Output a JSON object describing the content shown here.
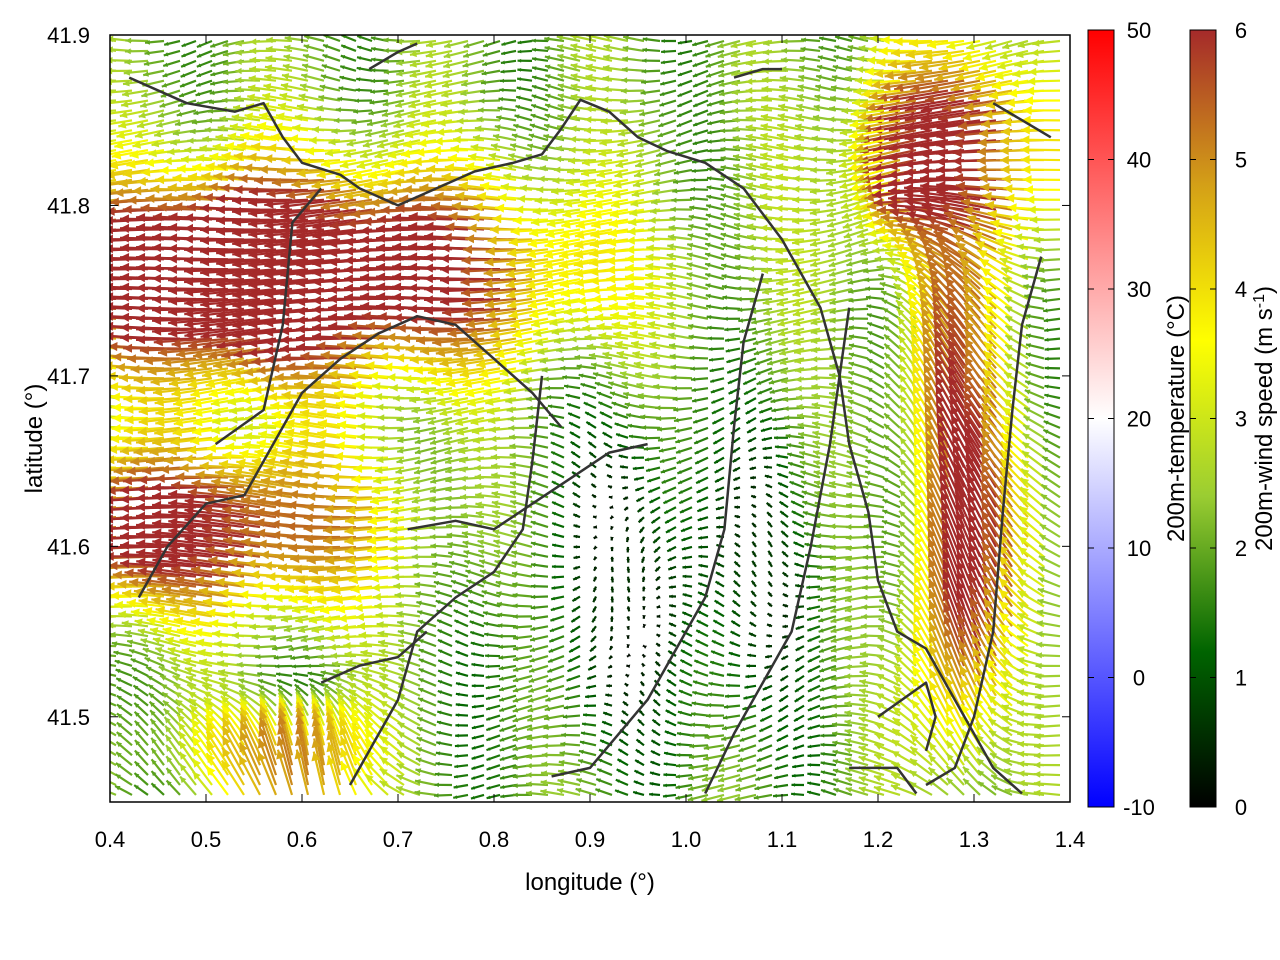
{
  "chart_data": {
    "type": "vector_field",
    "xlabel": "longitude (°)",
    "ylabel": "latitude (°)",
    "xlim": [
      0.4,
      1.4
    ],
    "ylim": [
      41.45,
      41.9
    ],
    "xticks": [
      "0.4",
      "0.5",
      "0.6",
      "0.7",
      "0.8",
      "0.9",
      "1.0",
      "1.1",
      "1.2",
      "1.3",
      "1.4"
    ],
    "xtick_values": [
      0.4,
      0.5,
      0.6,
      0.7,
      0.8,
      0.9,
      1.0,
      1.1,
      1.2,
      1.3,
      1.4
    ],
    "yticks": [
      "41.5",
      "41.6",
      "41.7",
      "41.8",
      "41.9"
    ],
    "ytick_values": [
      41.5,
      41.6,
      41.7,
      41.8,
      41.9
    ],
    "colorbars": [
      {
        "label": "200m-temperature (°C)",
        "range": [
          -10,
          50
        ],
        "ticks": [
          "-10",
          "0",
          "10",
          "20",
          "30",
          "40",
          "50"
        ],
        "tick_values": [
          -10,
          0,
          10,
          20,
          30,
          40,
          50
        ],
        "colors": [
          "#0000ff",
          "#ffffff",
          "#ff0000"
        ]
      },
      {
        "label_main": "200m-wind speed (m s",
        "label_sup": "-1",
        "label_end": ")",
        "range": [
          0,
          6
        ],
        "ticks": [
          "0",
          "1",
          "2",
          "3",
          "4",
          "5",
          "6"
        ],
        "tick_values": [
          0,
          1,
          2,
          3,
          4,
          5,
          6
        ],
        "colors": [
          "#000000",
          "#006400",
          "#9acd32",
          "#ffff00",
          "#d4a017",
          "#a52a2a"
        ]
      }
    ],
    "coastline": [
      [
        0.42,
        41.875
      ],
      [
        0.48,
        41.86
      ],
      [
        0.53,
        41.855
      ],
      [
        0.56,
        41.86
      ],
      [
        0.58,
        41.84
      ],
      [
        0.6,
        41.825
      ],
      [
        0.64,
        41.818
      ],
      [
        0.66,
        41.81
      ],
      [
        0.7,
        41.8
      ],
      [
        0.74,
        41.81
      ],
      [
        0.78,
        41.82
      ],
      [
        0.82,
        41.825
      ],
      [
        0.85,
        41.83
      ],
      [
        0.87,
        41.845
      ],
      [
        0.89,
        41.862
      ],
      [
        0.92,
        41.855
      ],
      [
        0.95,
        41.84
      ],
      [
        0.98,
        41.832
      ],
      [
        1.02,
        41.825
      ],
      [
        1.06,
        41.81
      ],
      [
        1.1,
        41.78
      ],
      [
        1.12,
        41.76
      ],
      [
        1.14,
        41.74
      ],
      [
        1.16,
        41.7
      ],
      [
        1.17,
        41.66
      ],
      [
        1.19,
        41.62
      ],
      [
        1.2,
        41.58
      ],
      [
        1.22,
        41.55
      ],
      [
        1.25,
        41.54
      ],
      [
        1.28,
        41.51
      ],
      [
        1.3,
        41.49
      ],
      [
        1.32,
        41.47
      ],
      [
        1.35,
        41.455
      ]
    ],
    "contours": [
      [
        [
          0.43,
          41.57
        ],
        [
          0.46,
          41.6
        ],
        [
          0.5,
          41.625
        ],
        [
          0.54,
          41.63
        ],
        [
          0.57,
          41.66
        ],
        [
          0.6,
          41.69
        ],
        [
          0.64,
          41.71
        ],
        [
          0.68,
          41.725
        ],
        [
          0.72,
          41.735
        ],
        [
          0.76,
          41.73
        ],
        [
          0.8,
          41.71
        ],
        [
          0.84,
          41.69
        ],
        [
          0.87,
          41.67
        ]
      ],
      [
        [
          0.51,
          41.66
        ],
        [
          0.56,
          41.68
        ],
        [
          0.58,
          41.73
        ],
        [
          0.59,
          41.79
        ],
        [
          0.62,
          41.81
        ]
      ],
      [
        [
          0.65,
          41.46
        ],
        [
          0.68,
          41.49
        ],
        [
          0.7,
          41.51
        ],
        [
          0.72,
          41.55
        ],
        [
          0.76,
          41.57
        ],
        [
          0.8,
          41.585
        ],
        [
          0.83,
          41.61
        ],
        [
          0.84,
          41.65
        ],
        [
          0.85,
          41.7
        ]
      ],
      [
        [
          0.62,
          41.52
        ],
        [
          0.66,
          41.53
        ],
        [
          0.7,
          41.535
        ],
        [
          0.73,
          41.55
        ]
      ],
      [
        [
          0.71,
          41.61
        ],
        [
          0.76,
          41.615
        ],
        [
          0.8,
          41.61
        ],
        [
          0.84,
          41.625
        ],
        [
          0.88,
          41.64
        ],
        [
          0.92,
          41.655
        ],
        [
          0.96,
          41.66
        ]
      ],
      [
        [
          0.86,
          41.465
        ],
        [
          0.9,
          41.47
        ],
        [
          0.93,
          41.49
        ],
        [
          0.96,
          41.51
        ],
        [
          0.99,
          41.54
        ],
        [
          1.02,
          41.57
        ],
        [
          1.04,
          41.61
        ],
        [
          1.05,
          41.67
        ],
        [
          1.06,
          41.72
        ],
        [
          1.08,
          41.76
        ]
      ],
      [
        [
          1.02,
          41.455
        ],
        [
          1.05,
          41.49
        ],
        [
          1.08,
          41.52
        ],
        [
          1.11,
          41.55
        ],
        [
          1.13,
          41.6
        ],
        [
          1.15,
          41.66
        ],
        [
          1.16,
          41.7
        ],
        [
          1.17,
          41.74
        ]
      ],
      [
        [
          1.2,
          41.5
        ],
        [
          1.25,
          41.52
        ],
        [
          1.26,
          41.5
        ],
        [
          1.25,
          41.48
        ]
      ],
      [
        [
          1.25,
          41.46
        ],
        [
          1.28,
          41.47
        ],
        [
          1.3,
          41.5
        ],
        [
          1.32,
          41.55
        ],
        [
          1.33,
          41.62
        ],
        [
          1.34,
          41.68
        ],
        [
          1.35,
          41.73
        ],
        [
          1.37,
          41.77
        ]
      ],
      [
        [
          1.17,
          41.47
        ],
        [
          1.22,
          41.47
        ],
        [
          1.24,
          41.455
        ]
      ],
      [
        [
          1.05,
          41.875
        ],
        [
          1.08,
          41.88
        ],
        [
          1.1,
          41.88
        ]
      ],
      [
        [
          1.32,
          41.86
        ],
        [
          1.35,
          41.85
        ],
        [
          1.38,
          41.84
        ]
      ],
      [
        [
          0.67,
          41.88
        ],
        [
          0.7,
          41.89
        ],
        [
          0.72,
          41.895
        ]
      ]
    ],
    "legend": "none",
    "grid": false
  }
}
